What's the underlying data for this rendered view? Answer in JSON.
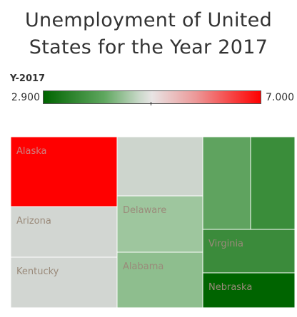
{
  "chart_data": {
    "type": "treemap",
    "title": "Unemployment of United\nStates for the Year 2017",
    "legend": {
      "title": "Y-2017",
      "min_label": "2.900",
      "max_label": "7.000",
      "min": 2.9,
      "max": 7.0,
      "colors": [
        "#006400",
        "#e8e4e4",
        "#ff0000"
      ]
    },
    "cells": [
      {
        "name": "Alaska",
        "label": "Alaska",
        "value": 7.0,
        "color": "#ff0000",
        "text_color": "#d08080"
      },
      {
        "name": "Arizona",
        "label": "Arizona",
        "value": 4.9,
        "color": "#d2d6d2",
        "text_color": "#9a8a7a"
      },
      {
        "name": "Kentucky",
        "label": "Kentucky",
        "value": 4.9,
        "color": "#d2d6d2",
        "text_color": "#9a8a7a"
      },
      {
        "name": "state-4",
        "label": "",
        "value": 4.9,
        "color": "#cdd5cd",
        "text_color": "#9a8a7a"
      },
      {
        "name": "Delaware",
        "label": "Delaware",
        "value": 4.5,
        "color": "#9ec69e",
        "text_color": "#9a8a7a"
      },
      {
        "name": "Alabama",
        "label": "Alabama",
        "value": 4.4,
        "color": "#8ebe8e",
        "text_color": "#9a8a7a"
      },
      {
        "name": "state-7",
        "label": "",
        "value": 3.8,
        "color": "#5fa35f",
        "text_color": "#9a8a7a"
      },
      {
        "name": "state-8",
        "label": "",
        "value": 3.5,
        "color": "#3a8d3a",
        "text_color": "#9a8a7a"
      },
      {
        "name": "Virginia",
        "label": "Virginia",
        "value": 3.7,
        "color": "#3b8b3b",
        "text_color": "#9a8a7a"
      },
      {
        "name": "Nebraska",
        "label": "Nebraska",
        "value": 2.9,
        "color": "#006400",
        "text_color": "#9a8a7a"
      }
    ]
  }
}
